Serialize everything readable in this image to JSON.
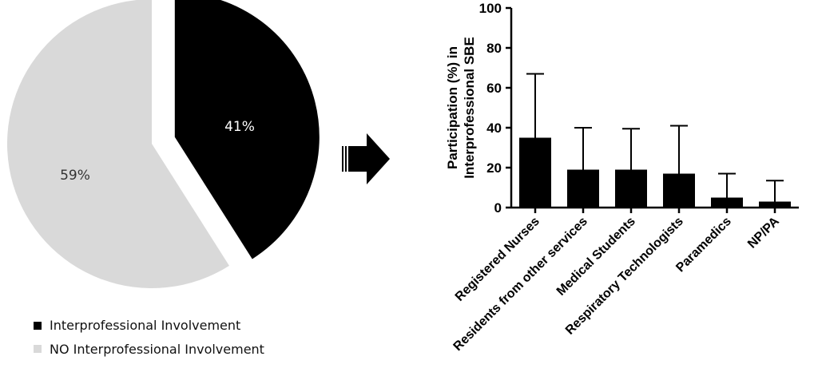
{
  "colors": {
    "involved": "#000000",
    "not_involved": "#d9d9d9",
    "bar": "#000000",
    "arrow": "#000000"
  },
  "chart_data": [
    {
      "type": "pie",
      "title": "",
      "slices": [
        {
          "name": "Interprofessional Involvement",
          "value": 41,
          "label": "41%",
          "exploded": true
        },
        {
          "name": "NO Interprofessional Involvement",
          "value": 59,
          "label": "59%",
          "exploded": false
        }
      ],
      "legend": {
        "placement": "bottom-left",
        "items": [
          "Interprofessional Involvement",
          "NO Interprofessional Involvement"
        ]
      }
    },
    {
      "type": "bar",
      "title": "",
      "ylabel_line1": "Participation (%) in",
      "ylabel_line2": "Interprofessional SBE",
      "xlabel": "",
      "ylim": [
        0,
        100
      ],
      "yticks": [
        "0",
        "20",
        "40",
        "60",
        "80",
        "100"
      ],
      "categories": [
        "Registered Nurses",
        "Residents from other services",
        "Medical Students",
        "Respiratory Technologists",
        "Paramedics",
        "NP/PA"
      ],
      "values": [
        35,
        19,
        19,
        17,
        5,
        3
      ],
      "error_upper": [
        67,
        40,
        39.5,
        41,
        17,
        13.5
      ],
      "grid": false
    }
  ]
}
